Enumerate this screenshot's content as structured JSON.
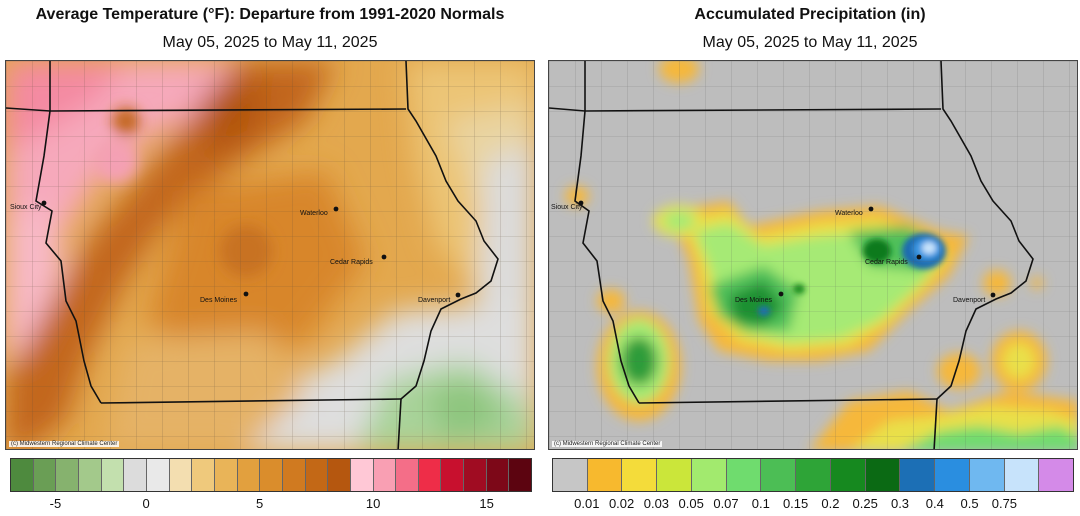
{
  "temperature": {
    "title": "Average Temperature (°F): Departure from 1991-2020 Normals",
    "subtitle": "May 05, 2025 to May 11, 2025",
    "credit": "(c) Midwestern Regional Climate Center",
    "cities": [
      {
        "name": "Sioux City"
      },
      {
        "name": "Waterloo"
      },
      {
        "name": "Cedar Rapids"
      },
      {
        "name": "Des Moines"
      },
      {
        "name": "Davenport"
      }
    ],
    "legend": {
      "colors": [
        "#4e8a3e",
        "#6a9e55",
        "#86b26e",
        "#a3c98b",
        "#c3e0ae",
        "#dcdcdc",
        "#e9e9e9",
        "#f3deb0",
        "#efc97c",
        "#e9b458",
        "#e2a03e",
        "#da8d2c",
        "#d07a20",
        "#c36816",
        "#b5570f",
        "#ffc8d6",
        "#f99fb3",
        "#f46e88",
        "#ee2d48",
        "#c8102e",
        "#a00c22",
        "#7d0818",
        "#5c0410"
      ],
      "tick_labels": [
        "-5",
        "0",
        "5",
        "10",
        "15"
      ]
    }
  },
  "precipitation": {
    "title": "Accumulated Precipitation (in)",
    "subtitle": "May 05, 2025 to May 11, 2025",
    "credit": "(c) Midwestern Regional Climate Center",
    "cities": [
      {
        "name": "Sioux City"
      },
      {
        "name": "Waterloo"
      },
      {
        "name": "Cedar Rapids"
      },
      {
        "name": "Des Moines"
      },
      {
        "name": "Davenport"
      }
    ],
    "legend": {
      "colors": [
        "#c6c6c6",
        "#f7b92e",
        "#f4dc3a",
        "#cbe63a",
        "#a2ea6e",
        "#6fdc6e",
        "#4cbe55",
        "#2ea437",
        "#16891f",
        "#0b6a14",
        "#1c6fb5",
        "#2a8ee0",
        "#6fb8f0",
        "#c7e3fb",
        "#d48ae8"
      ],
      "tick_labels": [
        "0.01",
        "0.02",
        "0.03",
        "0.05",
        "0.07",
        "0.1",
        "0.15",
        "0.2",
        "0.25",
        "0.3",
        "0.4",
        "0.5",
        "0.75"
      ]
    }
  }
}
